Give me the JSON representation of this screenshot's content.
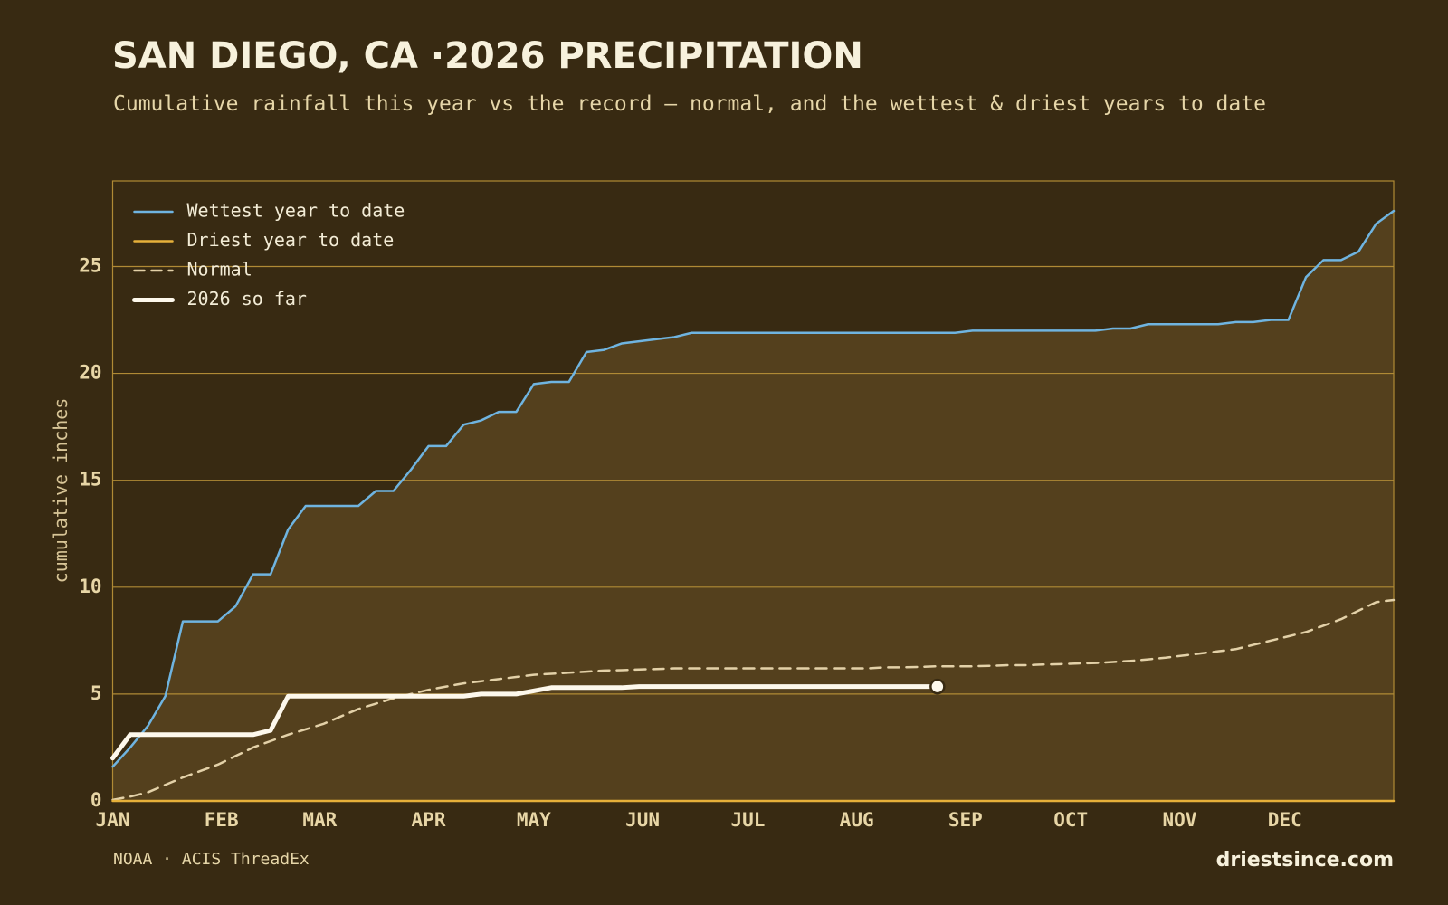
{
  "chart_data": {
    "type": "line",
    "title": "SAN DIEGO, CA ·2026 PRECIPITATION",
    "subtitle": "Cumulative rainfall this year vs the record — normal, and the wettest & driest years to date",
    "ylabel": "cumulative inches",
    "source": "NOAA · ACIS ThreadEx",
    "credit": "driestsince.com",
    "xlim": [
      0,
      365
    ],
    "xticks": [
      {
        "value": 0,
        "label": "JAN"
      },
      {
        "value": 31,
        "label": "FEB"
      },
      {
        "value": 59,
        "label": "MAR"
      },
      {
        "value": 90,
        "label": "APR"
      },
      {
        "value": 120,
        "label": "MAY"
      },
      {
        "value": 151,
        "label": "JUN"
      },
      {
        "value": 181,
        "label": "JUL"
      },
      {
        "value": 212,
        "label": "AUG"
      },
      {
        "value": 243,
        "label": "SEP"
      },
      {
        "value": 273,
        "label": "OCT"
      },
      {
        "value": 304,
        "label": "NOV"
      },
      {
        "value": 334,
        "label": "DEC"
      }
    ],
    "ylim": [
      0,
      29
    ],
    "yticks": [
      0,
      5,
      10,
      15,
      20,
      25
    ],
    "grid": true,
    "legend": "upper left",
    "band_color": "#54401d",
    "x": [
      0,
      5,
      10,
      15,
      20,
      25,
      30,
      35,
      40,
      45,
      50,
      55,
      60,
      65,
      70,
      75,
      80,
      85,
      90,
      95,
      100,
      105,
      110,
      115,
      120,
      125,
      130,
      135,
      140,
      145,
      150,
      155,
      160,
      165,
      170,
      175,
      180,
      185,
      190,
      195,
      200,
      205,
      210,
      215,
      220,
      225,
      230,
      235,
      240,
      245,
      250,
      255,
      260,
      265,
      270,
      275,
      280,
      285,
      290,
      295,
      300,
      305,
      310,
      315,
      320,
      325,
      330,
      335,
      340,
      345,
      350,
      355,
      360,
      365
    ],
    "series": [
      {
        "name": "Wettest year to date",
        "color": "#6fb4e0",
        "line_style": "solid",
        "values": [
          1.6,
          2.5,
          3.5,
          4.9,
          8.4,
          8.4,
          8.4,
          9.1,
          10.6,
          10.6,
          12.7,
          13.8,
          13.8,
          13.8,
          13.8,
          14.5,
          14.5,
          15.5,
          16.6,
          16.6,
          17.6,
          17.8,
          18.2,
          18.2,
          19.5,
          19.6,
          19.6,
          21.0,
          21.1,
          21.4,
          21.5,
          21.6,
          21.7,
          21.9,
          21.9,
          21.9,
          21.9,
          21.9,
          21.9,
          21.9,
          21.9,
          21.9,
          21.9,
          21.9,
          21.9,
          21.9,
          21.9,
          21.9,
          21.9,
          22.0,
          22.0,
          22.0,
          22.0,
          22.0,
          22.0,
          22.0,
          22.0,
          22.1,
          22.1,
          22.3,
          22.3,
          22.3,
          22.3,
          22.3,
          22.4,
          22.4,
          22.5,
          22.5,
          24.5,
          25.3,
          25.3,
          25.7,
          27.0,
          27.6
        ]
      },
      {
        "name": "Driest year to date",
        "color": "#e6b03a",
        "line_style": "solid",
        "values": [
          0,
          0,
          0,
          0,
          0,
          0,
          0,
          0,
          0,
          0,
          0,
          0,
          0,
          0,
          0,
          0,
          0,
          0,
          0,
          0,
          0,
          0,
          0,
          0,
          0,
          0,
          0,
          0,
          0,
          0,
          0,
          0,
          0,
          0,
          0,
          0,
          0,
          0,
          0,
          0,
          0,
          0,
          0,
          0,
          0,
          0,
          0,
          0,
          0,
          0,
          0,
          0,
          0,
          0,
          0,
          0,
          0,
          0,
          0,
          0,
          0,
          0,
          0,
          0,
          0,
          0,
          0,
          0,
          0,
          0,
          0,
          0,
          0,
          0
        ]
      },
      {
        "name": "Normal",
        "color": "#e3d1a8",
        "line_style": "dashed",
        "values": [
          0.05,
          0.2,
          0.4,
          0.75,
          1.1,
          1.4,
          1.7,
          2.1,
          2.5,
          2.8,
          3.1,
          3.35,
          3.6,
          3.95,
          4.3,
          4.55,
          4.8,
          5.0,
          5.2,
          5.35,
          5.5,
          5.6,
          5.7,
          5.8,
          5.9,
          5.95,
          6.0,
          6.05,
          6.1,
          6.12,
          6.15,
          6.17,
          6.2,
          6.2,
          6.2,
          6.2,
          6.2,
          6.2,
          6.2,
          6.2,
          6.2,
          6.2,
          6.2,
          6.2,
          6.25,
          6.25,
          6.27,
          6.3,
          6.3,
          6.3,
          6.32,
          6.35,
          6.35,
          6.38,
          6.4,
          6.43,
          6.45,
          6.5,
          6.55,
          6.62,
          6.7,
          6.8,
          6.9,
          7.0,
          7.1,
          7.3,
          7.5,
          7.7,
          7.9,
          8.2,
          8.5,
          8.9,
          9.3,
          9.4
        ]
      },
      {
        "name": "2026 so far",
        "color": "#fdf8ec",
        "line_style": "thick",
        "values": [
          2.0,
          3.1,
          3.1,
          3.1,
          3.1,
          3.1,
          3.1,
          3.1,
          3.1,
          3.3,
          4.9,
          4.9,
          4.9,
          4.9,
          4.9,
          4.9,
          4.9,
          4.9,
          4.9,
          4.9,
          4.9,
          5.0,
          5.0,
          5.0,
          5.15,
          5.3,
          5.3,
          5.3,
          5.3,
          5.3,
          5.35,
          5.35,
          5.35,
          5.35,
          5.35,
          5.35,
          5.35,
          5.35,
          5.35,
          5.35,
          5.35,
          5.35,
          5.35,
          5.35,
          5.35,
          5.35,
          5.35,
          5.35,
          null,
          null,
          null,
          null,
          null,
          null,
          null,
          null,
          null,
          null,
          null,
          null,
          null,
          null,
          null,
          null,
          null,
          null,
          null,
          null,
          null,
          null,
          null,
          null,
          null,
          null
        ]
      }
    ]
  }
}
